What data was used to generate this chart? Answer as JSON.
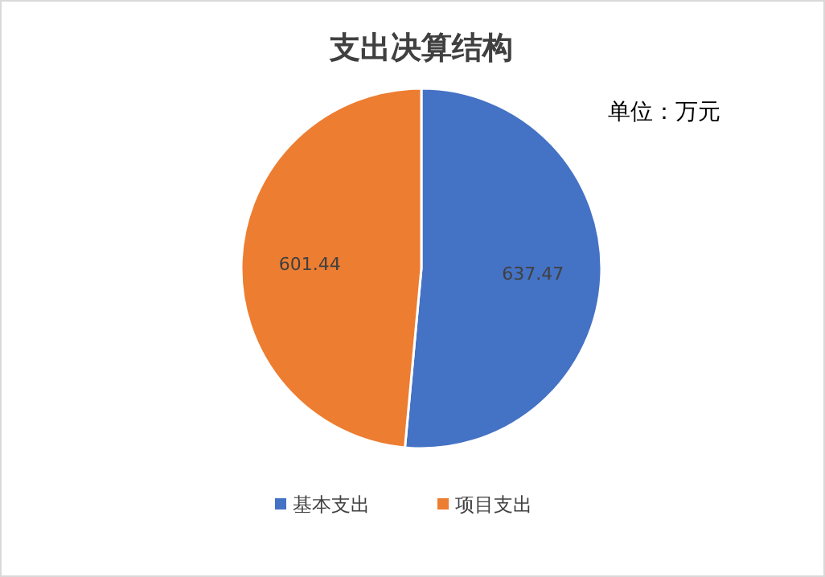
{
  "chart_data": {
    "type": "pie",
    "title": "支出决算结构",
    "categories": [
      "基本支出",
      "项目支出"
    ],
    "values": [
      637.47,
      601.44
    ],
    "colors": [
      "#4472c4",
      "#ed7d31"
    ],
    "annotations": [
      "单位：万元"
    ],
    "data_labels": true,
    "legend": "bottom"
  }
}
